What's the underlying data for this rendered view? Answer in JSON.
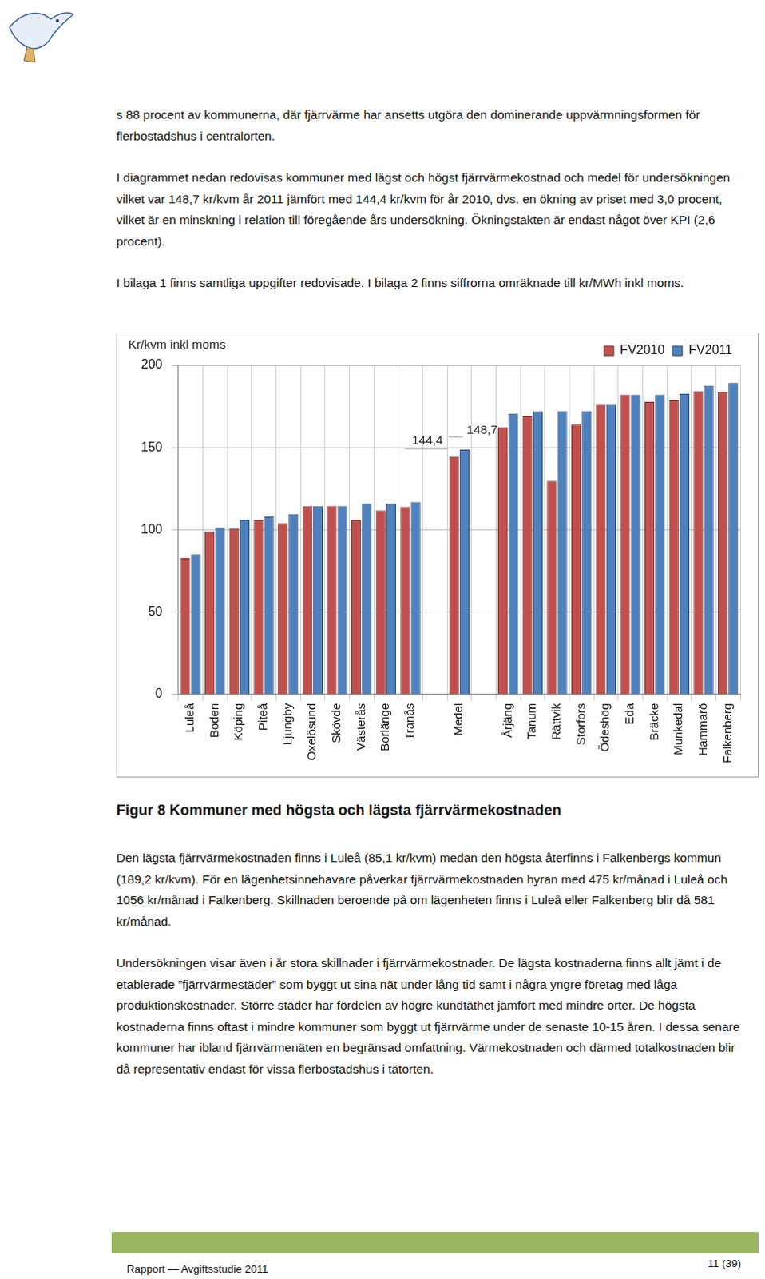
{
  "header_text": [
    "s 88 procent av kommunerna, där fjärrvärme har ansetts utgöra den dominerande uppvärmningsformen för flerbostadshus i centralorten.",
    "I diagrammet nedan redovisas kommuner med lägst och högst fjärrvärmekostnad och medel för undersökningen vilket var 148,7 kr/kvm år 2011 jämfört med 144,4 kr/kvm för år 2010, dvs. en ökning av priset med 3,0 procent, vilket är en minskning i relation till föregående års undersökning. Ökningstakten är endast något över KPI (2,6 procent).",
    "I bilaga 1 finns samtliga uppgifter redovisade. I bilaga 2 finns siffrorna omräknade till kr/MWh inkl moms."
  ],
  "chart_data": {
    "type": "bar",
    "y_label": "Kr/kvm inkl moms",
    "categories": [
      "Luleå",
      "Boden",
      "Köping",
      "Piteå",
      "Ljungby",
      "Oxelösund",
      "Skövde",
      "Västerås",
      "Borlänge",
      "Tranås",
      null,
      "Medel",
      null,
      "Årjäng",
      "Tanum",
      "Rättvik",
      "Storfors",
      "Ödeshög",
      "Eda",
      "Bräcke",
      "Munkedal",
      "Hammarö",
      "Falkenberg"
    ],
    "series": [
      {
        "name": "FV2010",
        "color": "#c0504d",
        "values": [
          82.8,
          99,
          100.8,
          106,
          104,
          114.4,
          114.5,
          106,
          111.7,
          114,
          null,
          144.4,
          null,
          162.4,
          169,
          129.7,
          164,
          176,
          182,
          177.7,
          178.7,
          184.2,
          183.6
        ],
        "value_labels": [
          null,
          null,
          null,
          null,
          null,
          null,
          null,
          null,
          null,
          null,
          null,
          "144,4",
          null,
          null,
          null,
          null,
          null,
          null,
          null,
          null,
          null,
          null,
          null
        ]
      },
      {
        "name": "FV2011",
        "color": "#4f81bd",
        "values": [
          85.1,
          101.4,
          106,
          108,
          109.5,
          114.4,
          114.5,
          116,
          116,
          117,
          null,
          148.7,
          null,
          170.6,
          172,
          172.2,
          172.2,
          176,
          182,
          182,
          182.6,
          187.5,
          189.2
        ],
        "value_labels": [
          null,
          null,
          null,
          null,
          null,
          null,
          null,
          null,
          null,
          null,
          null,
          "148,7",
          null,
          null,
          null,
          null,
          null,
          null,
          null,
          null,
          null,
          null,
          null
        ]
      }
    ],
    "ylim": [
      0,
      200
    ],
    "yticks": [
      0,
      50,
      100,
      150,
      200
    ],
    "grid": true,
    "legend": "top-right"
  },
  "figure_caption": "Figur 8 Kommuner med högsta och lägsta fjärrvärmekostnaden",
  "body_text": [
    "Den lägsta fjärrvärmekostnaden finns i Luleå (85,1 kr/kvm) medan den högsta återfinns i Falkenbergs kommun (189,2 kr/kvm). För en lägenhetsinnehavare påverkar fjärrvärmekostnaden hyran med 475 kr/månad i Luleå och 1056 kr/månad i Falkenberg. Skillnaden beroende på om lägenheten finns i Luleå eller Falkenberg blir då 581 kr/månad.",
    "Undersökningen visar även i år stora skillnader i fjärrvärmekostnader. De lägsta kostnaderna finns allt jämt i de etablerade ”fjärrvärmestäder” som byggt ut sina nät under lång tid samt i några yngre företag med låga produktionskostnader. Större städer har fördelen av högre kundtäthet jämfört med mindre orter. De högsta kostnaderna finns oftast i mindre kommuner som byggt ut fjärrvärme under de senaste 10-15 åren. I dessa senare kommuner har ibland fjärrvärmenäten en begränsad omfattning. Värmekostnaden och därmed totalkostnaden blir då representativ endast för vissa flerbostadshus i tätorten."
  ],
  "footer": {
    "left": "Rapport — Avgiftsstudie 2011",
    "page": "11 (39)"
  }
}
